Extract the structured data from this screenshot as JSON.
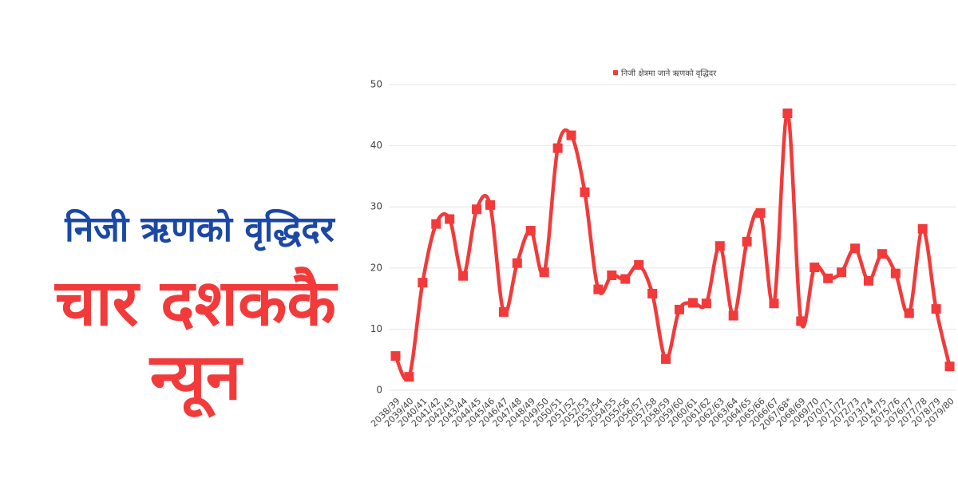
{
  "headline": {
    "line1": "निजी ऋणको वृद्धिदर",
    "line2": "चार दशककै",
    "line3": "न्यून"
  },
  "chart_data": {
    "type": "line",
    "categories": [
      "2038/39",
      "2039/40",
      "2040/41",
      "2041/42",
      "2042/43",
      "2043/44",
      "2044/45",
      "2045/46",
      "2046/47",
      "2047/48",
      "2048/49",
      "2049/50",
      "2050/51",
      "2051/52",
      "2052/53",
      "2053/54",
      "2054/55",
      "2055/56",
      "2056/57",
      "2057/58",
      "2058/59",
      "2059/60",
      "2060/61",
      "2061/62",
      "2062/63",
      "2063/64",
      "2064/65",
      "2065/66",
      "2066/67",
      "2067/68*",
      "2068/69",
      "2069/70",
      "2070/71",
      "2071/72",
      "2072/73",
      "2073/74",
      "2014/75",
      "2075/76",
      "2076/77",
      "2077/78",
      "2078/79",
      "2079/80"
    ],
    "series": [
      {
        "name": "निजी क्षेत्रमा जाने ऋणको वृद्धिदर",
        "color": "#f23a3a",
        "values": [
          5.6,
          2.2,
          17.6,
          27.2,
          28.0,
          18.7,
          29.6,
          30.3,
          12.8,
          20.8,
          26.1,
          19.3,
          39.6,
          41.7,
          32.4,
          16.5,
          18.8,
          18.2,
          20.5,
          15.8,
          5.1,
          13.2,
          14.3,
          14.2,
          23.6,
          12.2,
          24.3,
          29.0,
          14.2,
          45.3,
          11.3,
          20.1,
          18.3,
          19.3,
          23.2,
          17.9,
          22.3,
          19.1,
          12.6,
          26.4,
          13.3,
          3.9
        ]
      }
    ],
    "ylim": [
      0,
      50
    ],
    "yticks": [
      0,
      10,
      20,
      30,
      40,
      50
    ],
    "grid": true,
    "smooth": true,
    "legend": "top"
  }
}
